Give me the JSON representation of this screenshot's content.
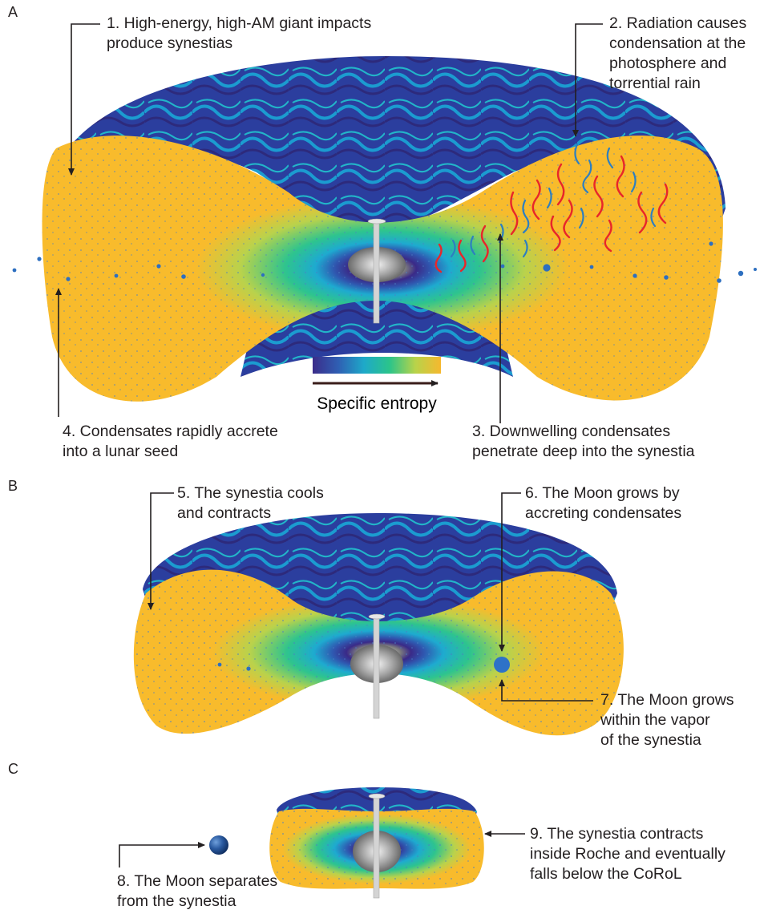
{
  "panels": [
    {
      "id": "A",
      "letter": "A"
    },
    {
      "id": "B",
      "letter": "B"
    },
    {
      "id": "C",
      "letter": "C"
    }
  ],
  "annotations": {
    "a1": "1. High-energy, high-AM giant impacts\nproduce synestias",
    "a2": "2. Radiation causes\ncondensation at the\nphotosphere and\ntorrential rain",
    "a3": "3. Downwelling condensates\npenetrate deep into the synestia",
    "a4": "4. Condensates rapidly accrete\ninto a lunar seed",
    "b5": "5. The synestia cools\nand contracts",
    "b6": "6. The Moon grows by\naccreting condensates",
    "b7": "7. The Moon grows\nwithin the vapor\nof the synestia",
    "c8": "8. The Moon separates\nfrom the synestia",
    "c9": "9. The synestia contracts\ninside Roche and eventually\nfalls below the CoRoL"
  },
  "legend": {
    "title": "Specific entropy",
    "colors": [
      "#3b2c8a",
      "#2f5fb3",
      "#1ea9c9",
      "#2bc48a",
      "#b8d34a",
      "#f6b82e"
    ]
  },
  "colors": {
    "vapor_top": "#2a3d9a",
    "vapor_swirl": "#1c8fc8",
    "interior_yellow": "#f8bb2c",
    "core_gray": "#8a8a8a",
    "condensate_blue": "#3a7fc4",
    "rain_red": "#e8262a",
    "moon_blue": "#1d4a8c",
    "ink": "#231f20"
  }
}
